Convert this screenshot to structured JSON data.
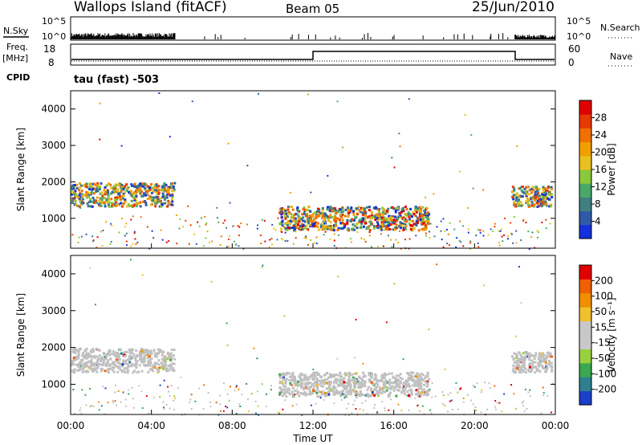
{
  "header": {
    "title": "Wallops Island (fitACF)",
    "beam": "Beam 05",
    "date": "25/Jun/2010"
  },
  "top_panels": {
    "nsky_label": "N.Sky",
    "nsky_ticks": [
      "10^5",
      "10^0"
    ],
    "nsearch_label": "N.Search",
    "nsearch_ticks": [
      "10^5",
      "10^0"
    ],
    "freq_label": "Freq.",
    "freq_unit": "[MHz]",
    "freq_ticks": [
      "18",
      "8"
    ],
    "nave_label": "Nave",
    "nave_ticks": [
      "60",
      "0"
    ],
    "cpid_label": "CPID",
    "cpid_text": "tau (fast) -503"
  },
  "chart_data": [
    {
      "type": "heatmap",
      "name_hint": "power",
      "ylabel": "Slant Range [km]",
      "ylim": [
        180,
        4500
      ],
      "yticks": [
        "1000",
        "2000",
        "3000",
        "4000"
      ],
      "xlim_hours": [
        0,
        24
      ],
      "colorbar_label": "Power [dB]",
      "colorbar_ticks": [
        "4",
        "8",
        "12",
        "16",
        "20",
        "24",
        "28"
      ],
      "colorbar_colors": [
        "#1430dc",
        "#2e5aa8",
        "#3f7f7f",
        "#4aa86a",
        "#8ac83c",
        "#e8c020",
        "#f0a000",
        "#f07000",
        "#e83a00",
        "#e00000"
      ],
      "regions": [
        {
          "t0": 0.0,
          "t1": 5.1,
          "r0": 1350,
          "r1": 2000,
          "note": "main echo band"
        },
        {
          "t0": 10.3,
          "t1": 17.7,
          "r0": 700,
          "r1": 1350,
          "note": "afternoon band"
        },
        {
          "t0": 21.8,
          "t1": 23.8,
          "r0": 1350,
          "r1": 1900,
          "note": "evening band"
        }
      ]
    },
    {
      "type": "heatmap",
      "name_hint": "velocity",
      "ylabel": "Slant Range [km]",
      "ylim": [
        180,
        4500
      ],
      "yticks": [
        "1000",
        "2000",
        "3000",
        "4000"
      ],
      "xlim_hours": [
        0,
        24
      ],
      "colorbar_label": "Velocity [m s⁻¹]",
      "colorbar_ticks": [
        "200",
        "100",
        "50",
        "15",
        "-15",
        "-50",
        "-100",
        "-200"
      ],
      "colorbar_colors": [
        "#1a3fc8",
        "#2f7f8f",
        "#3aa850",
        "#9ad040",
        "#c8c8c8",
        "#c8c8c8",
        "#f0c030",
        "#f09000",
        "#f06000",
        "#e00000"
      ],
      "regions": [
        {
          "t0": 0.0,
          "t1": 5.1,
          "r0": 1350,
          "r1": 2000,
          "note": "ground-scatter grey band"
        },
        {
          "t0": 10.3,
          "t1": 17.7,
          "r0": 700,
          "r1": 1350,
          "note": "grey band"
        },
        {
          "t0": 21.8,
          "t1": 23.8,
          "r0": 1350,
          "r1": 1900,
          "note": "grey band"
        }
      ]
    }
  ],
  "x_axis": {
    "ticks": [
      "00:00",
      "04:00",
      "08:00",
      "12:00",
      "16:00",
      "20:00",
      "00:00"
    ],
    "label": "Time UT"
  },
  "colors": {
    "axis": "#000000",
    "grey_scatter": "#c0c0c0"
  }
}
